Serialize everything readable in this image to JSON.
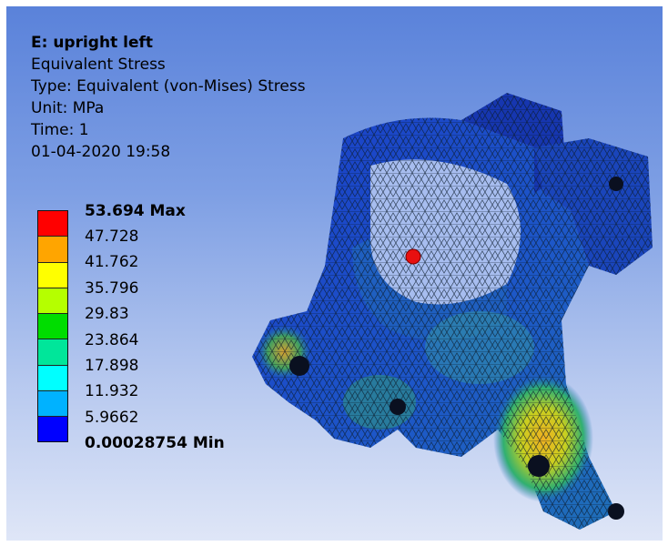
{
  "result": {
    "title": "E: upright left",
    "quantity": "Equivalent Stress",
    "type": "Type: Equivalent (von-Mises) Stress",
    "unit": "Unit: MPa",
    "time": "Time: 1",
    "timestamp": "01-04-2020 19:58"
  },
  "legend": {
    "labels": [
      "53.694 Max",
      "47.728",
      "41.762",
      "35.796",
      "29.83",
      "23.864",
      "17.898",
      "11.932",
      "5.9662",
      "0.00028754 Min"
    ],
    "colors": [
      "#ff0000",
      "#ffa500",
      "#ffff00",
      "#b5ff00",
      "#00dd00",
      "#00e69a",
      "#00ffff",
      "#00b2ff",
      "#0000ff"
    ]
  }
}
